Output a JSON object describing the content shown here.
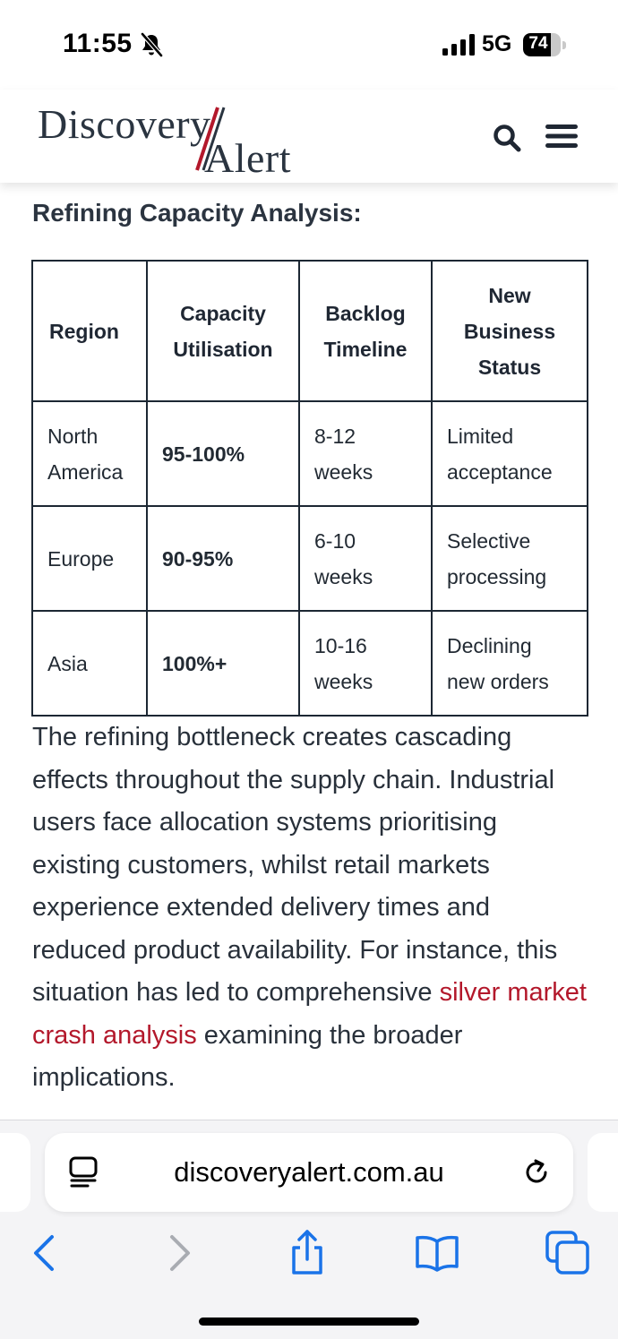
{
  "status_bar": {
    "time": "11:55",
    "network": "5G",
    "battery_percent": "74",
    "battery_level": 0.74
  },
  "header": {
    "logo_primary": "Discovery",
    "logo_secondary": "Alert",
    "logo_accent_color": "#b3182b",
    "icons": [
      "search-icon",
      "menu-icon"
    ]
  },
  "article": {
    "section_title": "Refining Capacity Analysis:",
    "table": {
      "headers": [
        "Region",
        "Capacity Utilisation",
        "Backlog Timeline",
        "New Business Status"
      ],
      "rows": [
        [
          "North America",
          "95-100%",
          "8-12 weeks",
          "Limited acceptance"
        ],
        [
          "Europe",
          "90-95%",
          "6-10 weeks",
          "Selective processing"
        ],
        [
          "Asia",
          "100%+",
          "10-16 weeks",
          "Declining new orders"
        ]
      ]
    },
    "paragraph_before_link": "The refining bottleneck creates cascading effects throughout the supply chain. Industrial users face allocation systems prioritising existing customers, whilst retail markets experience extended delivery times and reduced product availability. For instance, this situation has led to comprehensive ",
    "link_text": "silver market crash analysis",
    "paragraph_after_link": " examining the broader implications.",
    "link_color": "#b3182b"
  },
  "browser": {
    "url": "discoveryalert.com.au",
    "accent_color": "#1a73e8",
    "icons": [
      "reader-icon",
      "reload-icon",
      "back-icon",
      "forward-icon",
      "share-icon",
      "bookmarks-icon",
      "tabs-icon"
    ]
  }
}
